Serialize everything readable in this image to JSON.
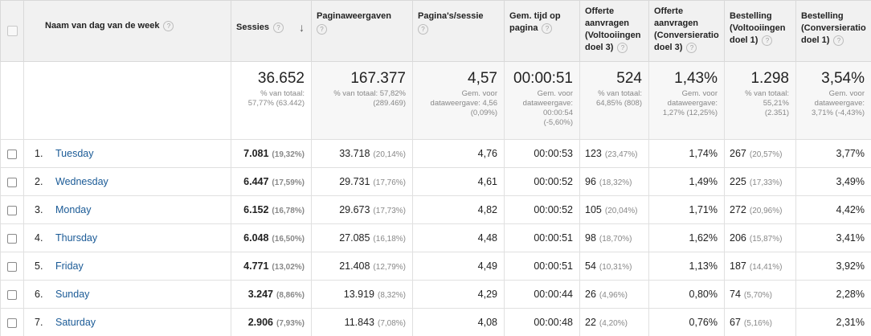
{
  "headers": {
    "dimension": "Naam van dag van de week",
    "sessies": "Sessies",
    "paginaweergaven": "Paginaweergaven",
    "pagina_sessie": "Pagina's/sessie",
    "gem_tijd_1": "Gem. tijd op",
    "gem_tijd_2": "pagina",
    "offerte_volt_1": "Offerte",
    "offerte_volt_2": "aanvragen",
    "offerte_volt_3": "(Voltooiingen",
    "offerte_volt_4": "doel 3)",
    "offerte_conv_1": "Offerte",
    "offerte_conv_2": "aanvragen",
    "offerte_conv_3": "(Conversieratio",
    "offerte_conv_4": "doel 3)",
    "best_volt_1": "Bestelling",
    "best_volt_2": "(Voltooiingen",
    "best_volt_3": "doel 1)",
    "best_conv_1": "Bestelling",
    "best_conv_2": "(Conversieratio",
    "best_conv_3": "doel 1)",
    "help_glyph": "?",
    "sort_glyph": "↓"
  },
  "totals": {
    "sessies": {
      "value": "36.652",
      "sub1": "% van totaal:",
      "sub2": "57,77% (63.442)"
    },
    "paginaweergaven": {
      "value": "167.377",
      "sub1": "% van totaal: 57,82%",
      "sub2": "(289.469)"
    },
    "pagina_sessie": {
      "value": "4,57",
      "sub1": "Gem. voor",
      "sub2": "dataweergave: 4,56",
      "sub3": "(0,09%)"
    },
    "gem_tijd": {
      "value": "00:00:51",
      "sub1": "Gem. voor",
      "sub2": "dataweergave:",
      "sub3": "00:00:54",
      "sub4": "(-5,60%)"
    },
    "offerte_volt": {
      "value": "524",
      "sub1": "% van totaal:",
      "sub2": "64,85% (808)"
    },
    "offerte_conv": {
      "value": "1,43%",
      "sub1": "Gem. voor",
      "sub2": "dataweergave:",
      "sub3": "1,27% (12,25%)"
    },
    "best_volt": {
      "value": "1.298",
      "sub1": "% van totaal:",
      "sub2": "55,21%",
      "sub3": "(2.351)"
    },
    "best_conv": {
      "value": "3,54%",
      "sub1": "Gem. voor",
      "sub2": "dataweergave:",
      "sub3": "3,71% (-4,43%)"
    }
  },
  "rows": [
    {
      "idx": "1.",
      "day": "Tuesday",
      "sessies": "7.081",
      "sessies_pct": "(19,32%)",
      "pv": "33.718",
      "pv_pct": "(20,14%)",
      "pps": "4,76",
      "tijd": "00:00:53",
      "ov": "123",
      "ov_pct": "(23,47%)",
      "oc": "1,74%",
      "bv": "267",
      "bv_pct": "(20,57%)",
      "bc": "3,77%"
    },
    {
      "idx": "2.",
      "day": "Wednesday",
      "sessies": "6.447",
      "sessies_pct": "(17,59%)",
      "pv": "29.731",
      "pv_pct": "(17,76%)",
      "pps": "4,61",
      "tijd": "00:00:52",
      "ov": "96",
      "ov_pct": "(18,32%)",
      "oc": "1,49%",
      "bv": "225",
      "bv_pct": "(17,33%)",
      "bc": "3,49%"
    },
    {
      "idx": "3.",
      "day": "Monday",
      "sessies": "6.152",
      "sessies_pct": "(16,78%)",
      "pv": "29.673",
      "pv_pct": "(17,73%)",
      "pps": "4,82",
      "tijd": "00:00:52",
      "ov": "105",
      "ov_pct": "(20,04%)",
      "oc": "1,71%",
      "bv": "272",
      "bv_pct": "(20,96%)",
      "bc": "4,42%"
    },
    {
      "idx": "4.",
      "day": "Thursday",
      "sessies": "6.048",
      "sessies_pct": "(16,50%)",
      "pv": "27.085",
      "pv_pct": "(16,18%)",
      "pps": "4,48",
      "tijd": "00:00:51",
      "ov": "98",
      "ov_pct": "(18,70%)",
      "oc": "1,62%",
      "bv": "206",
      "bv_pct": "(15,87%)",
      "bc": "3,41%"
    },
    {
      "idx": "5.",
      "day": "Friday",
      "sessies": "4.771",
      "sessies_pct": "(13,02%)",
      "pv": "21.408",
      "pv_pct": "(12,79%)",
      "pps": "4,49",
      "tijd": "00:00:51",
      "ov": "54",
      "ov_pct": "(10,31%)",
      "oc": "1,13%",
      "bv": "187",
      "bv_pct": "(14,41%)",
      "bc": "3,92%"
    },
    {
      "idx": "6.",
      "day": "Sunday",
      "sessies": "3.247",
      "sessies_pct": "(8,86%)",
      "pv": "13.919",
      "pv_pct": "(8,32%)",
      "pps": "4,29",
      "tijd": "00:00:44",
      "ov": "26",
      "ov_pct": "(4,96%)",
      "oc": "0,80%",
      "bv": "74",
      "bv_pct": "(5,70%)",
      "bc": "2,28%"
    },
    {
      "idx": "7.",
      "day": "Saturday",
      "sessies": "2.906",
      "sessies_pct": "(7,93%)",
      "pv": "11.843",
      "pv_pct": "(7,08%)",
      "pps": "4,08",
      "tijd": "00:00:48",
      "ov": "22",
      "ov_pct": "(4,20%)",
      "oc": "0,76%",
      "bv": "67",
      "bv_pct": "(5,16%)",
      "bc": "2,31%"
    }
  ]
}
